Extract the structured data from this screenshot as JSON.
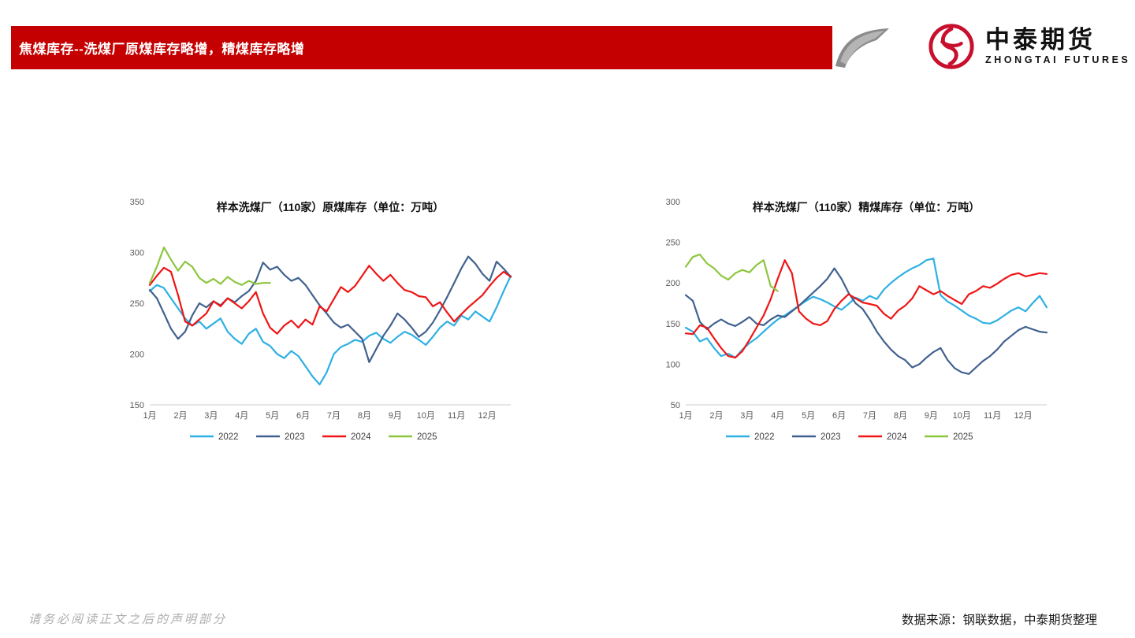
{
  "banner": {
    "title": "焦煤库存--洗煤厂原煤库存略增，精煤库存略增",
    "bg_color": "#C40000"
  },
  "logo": {
    "name_cn": "中泰期货",
    "name_en": "ZHONGTAI FUTURES",
    "brand_color": "#C8102E"
  },
  "footer": {
    "disclaimer": "请务必阅读正文之后的声明部分",
    "source": "数据来源：钢联数据，中泰期货整理"
  },
  "colors": {
    "s2022": "#2EB0E4",
    "s2023": "#41618E",
    "s2024": "#EF1515",
    "s2025": "#8DC63F",
    "axis_line": "#D0CECE",
    "axis_text": "#595959"
  },
  "chart_data": [
    {
      "type": "line",
      "title": "样本洗煤厂（110家）原煤库存（单位：万吨）",
      "ylabel": "万吨",
      "ylim": [
        150,
        350
      ],
      "yticks": [
        150,
        200,
        250,
        300,
        350
      ],
      "x_months": [
        "1月",
        "2月",
        "3月",
        "4月",
        "5月",
        "6月",
        "7月",
        "8月",
        "9月",
        "10月",
        "11月",
        "12月"
      ],
      "points_per_year": 52,
      "grid": false,
      "legend_position": "bottom",
      "series": [
        {
          "name": "2022",
          "color": "#2EB0E4",
          "values": [
            262,
            268,
            265,
            255,
            245,
            235,
            228,
            232,
            225,
            230,
            235,
            222,
            215,
            210,
            220,
            225,
            212,
            208,
            200,
            196,
            203,
            198,
            188,
            178,
            170,
            182,
            200,
            207,
            210,
            214,
            212,
            218,
            221,
            215,
            211,
            217,
            222,
            219,
            214,
            209,
            217,
            226,
            232,
            228,
            238,
            234,
            242,
            237,
            232,
            246,
            262,
            277
          ]
        },
        {
          "name": "2023",
          "color": "#41618E",
          "values": [
            263,
            255,
            240,
            225,
            215,
            222,
            238,
            250,
            246,
            252,
            248,
            255,
            251,
            257,
            262,
            272,
            290,
            283,
            286,
            278,
            272,
            275,
            268,
            258,
            248,
            240,
            231,
            226,
            229,
            222,
            215,
            192,
            205,
            218,
            228,
            240,
            234,
            226,
            217,
            222,
            231,
            243,
            256,
            270,
            284,
            296,
            289,
            279,
            272,
            291,
            284,
            276
          ]
        },
        {
          "name": "2024",
          "color": "#EF1515",
          "values": [
            268,
            277,
            285,
            281,
            258,
            232,
            228,
            234,
            240,
            252,
            247,
            255,
            250,
            245,
            252,
            261,
            240,
            226,
            220,
            228,
            233,
            226,
            234,
            229,
            247,
            242,
            254,
            266,
            261,
            267,
            277,
            287,
            279,
            272,
            278,
            270,
            263,
            261,
            257,
            256,
            247,
            251,
            241,
            232,
            239,
            246,
            252,
            258,
            267,
            275,
            281,
            276
          ]
        },
        {
          "name": "2025",
          "color": "#8DC63F",
          "values": [
            270,
            286,
            305,
            293,
            282,
            291,
            286,
            275,
            270,
            274,
            269,
            276,
            271,
            268,
            272,
            269,
            270,
            270
          ]
        }
      ]
    },
    {
      "type": "line",
      "title": "样本洗煤厂（110家）精煤库存（单位：万吨）",
      "ylabel": "万吨",
      "ylim": [
        50,
        300
      ],
      "yticks": [
        50,
        100,
        150,
        200,
        250,
        300
      ],
      "x_months": [
        "1月",
        "2月",
        "3月",
        "4月",
        "5月",
        "6月",
        "7月",
        "8月",
        "9月",
        "10月",
        "11月",
        "12月"
      ],
      "points_per_year": 52,
      "grid": false,
      "legend_position": "bottom",
      "series": [
        {
          "name": "2022",
          "color": "#2EB0E4",
          "values": [
            145,
            140,
            128,
            132,
            120,
            110,
            113,
            108,
            118,
            126,
            132,
            140,
            148,
            155,
            160,
            166,
            172,
            178,
            183,
            180,
            176,
            171,
            167,
            174,
            182,
            178,
            184,
            180,
            192,
            200,
            207,
            213,
            218,
            222,
            228,
            230,
            185,
            177,
            172,
            166,
            160,
            156,
            151,
            150,
            154,
            160,
            166,
            170,
            165,
            175,
            184,
            170
          ]
        },
        {
          "name": "2023",
          "color": "#41618E",
          "values": [
            185,
            178,
            152,
            143,
            150,
            155,
            150,
            147,
            152,
            158,
            150,
            148,
            155,
            160,
            158,
            165,
            172,
            180,
            188,
            196,
            205,
            218,
            205,
            188,
            175,
            168,
            155,
            140,
            128,
            118,
            110,
            105,
            96,
            100,
            108,
            115,
            120,
            105,
            95,
            90,
            88,
            96,
            104,
            110,
            118,
            128,
            135,
            142,
            146,
            143,
            140,
            139
          ]
        },
        {
          "name": "2024",
          "color": "#EF1515",
          "values": [
            138,
            137,
            148,
            145,
            132,
            120,
            110,
            108,
            116,
            130,
            145,
            160,
            180,
            205,
            228,
            212,
            165,
            156,
            150,
            148,
            153,
            168,
            178,
            186,
            181,
            176,
            174,
            172,
            162,
            156,
            166,
            172,
            181,
            196,
            191,
            186,
            190,
            184,
            179,
            174,
            186,
            190,
            196,
            194,
            199,
            205,
            210,
            212,
            208,
            210,
            212,
            211
          ]
        },
        {
          "name": "2025",
          "color": "#8DC63F",
          "values": [
            220,
            232,
            235,
            224,
            218,
            209,
            204,
            212,
            216,
            213,
            222,
            228,
            196,
            190
          ]
        }
      ]
    }
  ]
}
